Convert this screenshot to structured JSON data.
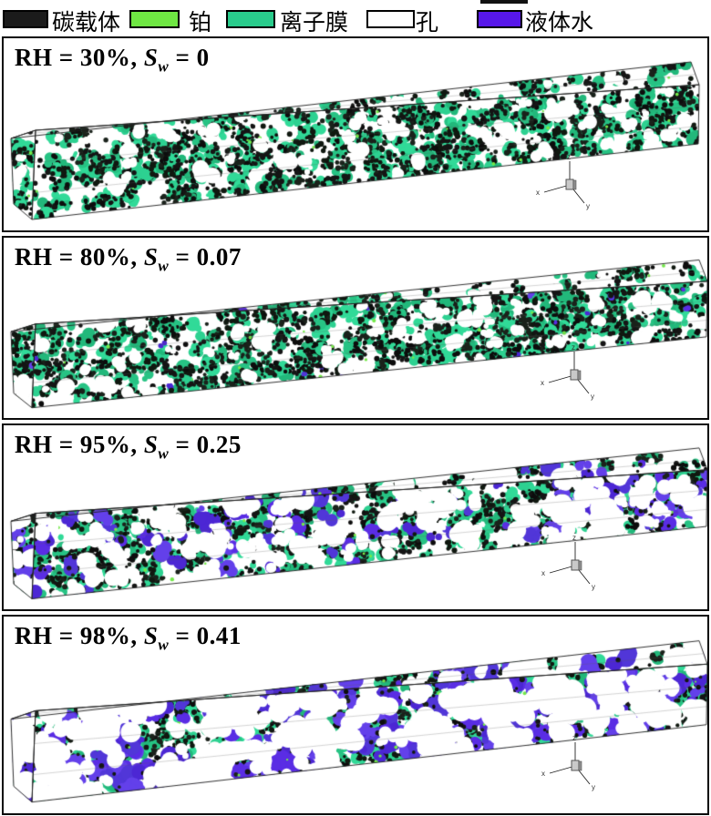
{
  "legend": {
    "items": [
      {
        "key": "carbon-support",
        "label": "碳载体",
        "color": "#1b1b1b"
      },
      {
        "key": "platinum",
        "label": "铂",
        "color": "#6fe743"
      },
      {
        "key": "ionomer",
        "label": "离子膜",
        "color": "#29cc8c"
      },
      {
        "key": "pore",
        "label": "孔",
        "color": "#ffffff"
      },
      {
        "key": "liquid-water",
        "label": "液体水",
        "color": "#5717e9"
      }
    ]
  },
  "panels": [
    {
      "id": "rh-30",
      "title_prefix": "RH = 30%, ",
      "sw_symbol": "S",
      "sw_subscript": "w",
      "title_suffix": " = 0",
      "sw": 0
    },
    {
      "id": "rh-80",
      "title_prefix": "RH = 80%, ",
      "sw_symbol": "S",
      "sw_subscript": "w",
      "title_suffix": " = 0.07",
      "sw": 0.07
    },
    {
      "id": "rh-95",
      "title_prefix": "RH = 95%, ",
      "sw_symbol": "S",
      "sw_subscript": "w",
      "title_suffix": " = 0.25",
      "sw": 0.25
    },
    {
      "id": "rh-98",
      "title_prefix": "RH = 98%, ",
      "sw_symbol": "S",
      "sw_subscript": "w",
      "title_suffix": " = 0.41",
      "sw": 0.41
    }
  ],
  "axis": {
    "x": "x",
    "y": "y",
    "z": "z"
  },
  "texture_colors": {
    "carbon": [
      "#0d0d0d",
      "#151515",
      "#1a221b",
      "#101810"
    ],
    "ionomer": [
      "#2dd191",
      "#27c384",
      "#31da98",
      "#22b87b"
    ],
    "water": [
      "#5a2de4",
      "#5136d8",
      "#6340ea",
      "#4c27d4"
    ],
    "platinum": "#74e94a",
    "pore": "#ffffff"
  }
}
